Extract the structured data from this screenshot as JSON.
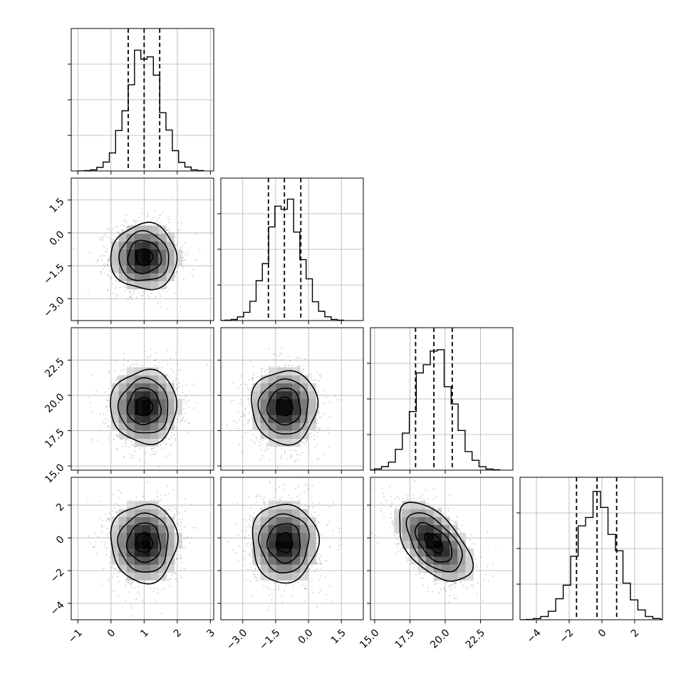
{
  "chart_data": {
    "type": "corner",
    "parameters": [
      {
        "id": "p0",
        "range": [
          -1.2,
          3.1
        ],
        "ticks": [
          -1,
          0,
          1,
          2,
          3
        ],
        "tick_labels": [
          "−1",
          "0",
          "1",
          "2",
          "3"
        ],
        "mean": 1.0,
        "sd": 0.5,
        "quantiles": [
          0.52,
          1.0,
          1.47
        ]
      },
      {
        "id": "p1",
        "range": [
          -4.0,
          2.5
        ],
        "ticks": [
          -3.0,
          -1.5,
          0.0,
          1.5
        ],
        "tick_labels": [
          "−3.0",
          "−1.5",
          "0.0",
          "1.5"
        ],
        "mean": -1.1,
        "sd": 0.75,
        "quantiles": [
          -1.83,
          -1.1,
          -0.35
        ]
      },
      {
        "id": "p2",
        "range": [
          14.7,
          24.8
        ],
        "ticks": [
          15.0,
          17.5,
          20.0,
          22.5
        ],
        "tick_labels": [
          "15.0",
          "17.5",
          "20.0",
          "22.5"
        ],
        "mean": 19.2,
        "sd": 1.3,
        "quantiles": [
          17.9,
          19.2,
          20.5
        ]
      },
      {
        "id": "p3",
        "range": [
          -5.0,
          3.7
        ],
        "ticks": [
          -4,
          -2,
          0,
          2
        ],
        "tick_labels": [
          "−4",
          "−2",
          "0",
          "2"
        ],
        "mean": -0.3,
        "sd": 1.2,
        "quantiles": [
          -1.55,
          -0.3,
          0.9
        ]
      }
    ],
    "correlations": {
      "3-2": -0.55,
      "3-1": 0.0,
      "3-0": 0.0,
      "2-1": 0.0,
      "2-0": 0.0,
      "1-0": 0.0
    },
    "histogram_bins": 20,
    "contour_levels": 4,
    "quantile_line_style": "dashed",
    "grid": true,
    "colors": {
      "line": "#000000",
      "grid": "#b0b0b0",
      "points": "#9a9a9a",
      "density_dark": "#000000",
      "density_light": "#ffffff"
    }
  }
}
